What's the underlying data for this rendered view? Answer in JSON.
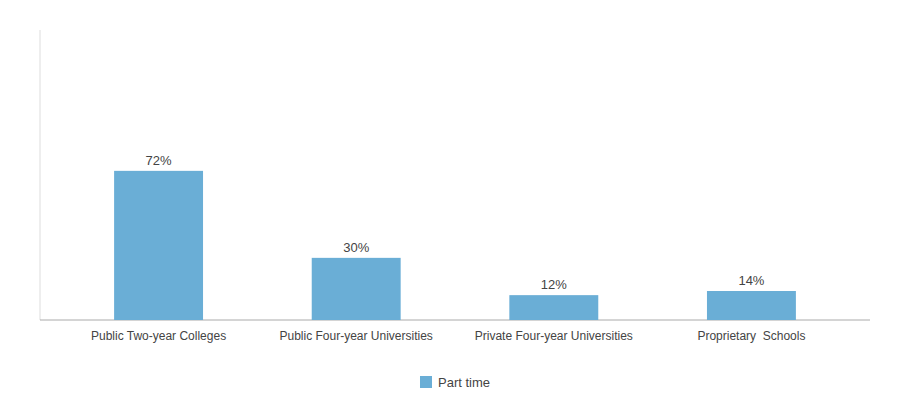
{
  "chart_data": {
    "type": "bar",
    "categories": [
      "Public Two-year Colleges",
      "Public Four-year Universities",
      "Private Four-year Universities",
      "Proprietary  Schools"
    ],
    "series": [
      {
        "name": "Part time",
        "color": "#6AAED6",
        "values": [
          72,
          30,
          12,
          14
        ],
        "value_labels": [
          "72%",
          "30%",
          "12%",
          "14%"
        ]
      }
    ],
    "ylim": [
      0,
      140
    ],
    "data_labels": true,
    "tick_labels": "x",
    "grid": false,
    "legend": "bottom"
  }
}
